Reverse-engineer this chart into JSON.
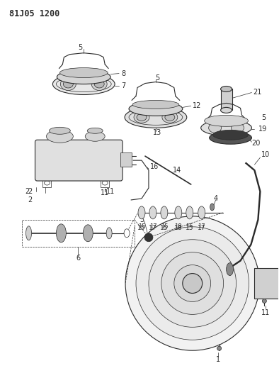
{
  "title": "81J05 1200",
  "bg_color": "#ffffff",
  "line_color": "#2a2a2a",
  "gray_light": "#cccccc",
  "gray_med": "#aaaaaa",
  "gray_dark": "#444444",
  "title_fontsize": 8.5,
  "label_fontsize": 6.5,
  "fig_width": 3.94,
  "fig_height": 5.33,
  "dpi": 100
}
